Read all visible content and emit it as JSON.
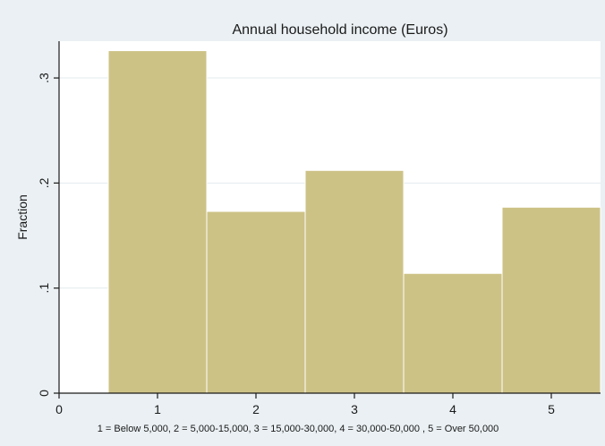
{
  "chart_data": {
    "type": "bar",
    "title": "Annual household income (Euros)",
    "xlabel": "1 = Below 5,000, 2 = 5,000-15,000, 3 = 15,000-30,000, 4 = 30,000-50,000 , 5 = Over 50,000",
    "ylabel": "Fraction",
    "categories": [
      "1",
      "2",
      "3",
      "4",
      "5"
    ],
    "x": [
      1,
      2,
      3,
      4,
      5
    ],
    "values": [
      0.326,
      0.173,
      0.212,
      0.114,
      0.177
    ],
    "xlim": [
      0,
      5.5
    ],
    "ylim": [
      0,
      0.335
    ],
    "xticks": [
      "0",
      "1",
      "2",
      "3",
      "4",
      "5"
    ],
    "yticks": [
      "0",
      ".1",
      ".2",
      ".3"
    ],
    "grid": true,
    "legend": "none",
    "colors": {
      "bar": "#cdc286",
      "bar_stroke": "#ffffff",
      "plot_background": "#ffffff",
      "outer_background": "#eaf0f3",
      "title_band": "#eaf0f3",
      "grid": "#e3ebee",
      "axis": "#1a1a1a"
    }
  }
}
